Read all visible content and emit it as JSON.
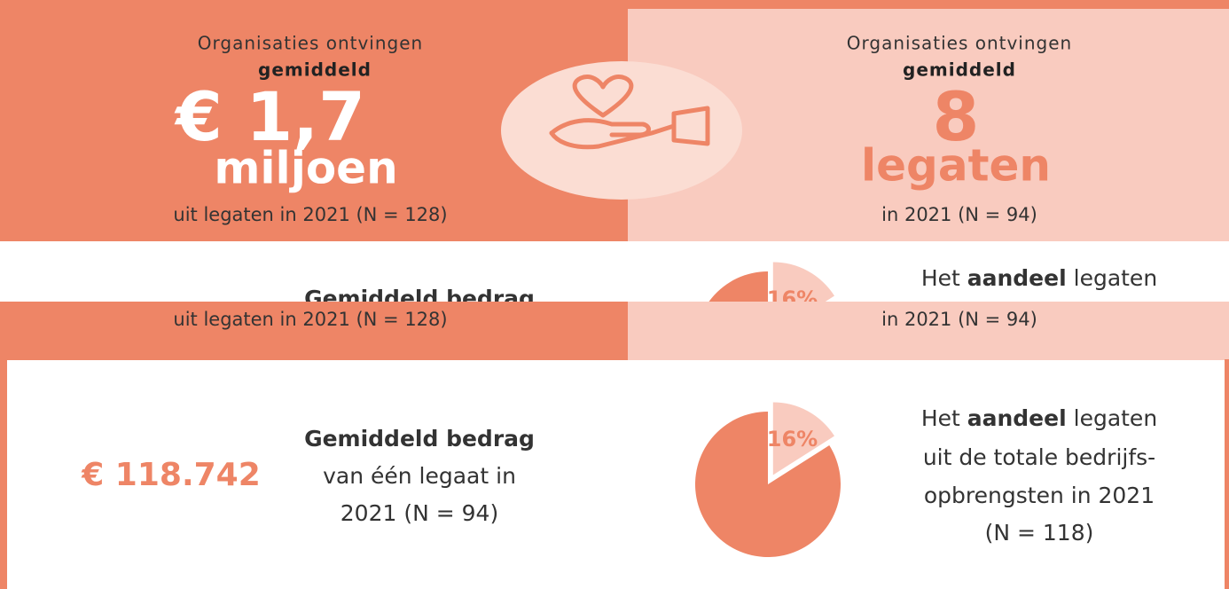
{
  "left": {
    "line1": "Organisaties ontvingen",
    "line2": "gemiddeld",
    "big1": "€ 1,7",
    "big2": "miljoen",
    "foot": "uit legaten in 2021 (N = 128)"
  },
  "right": {
    "line1": "Organisaties ontvingen",
    "line2": "gemiddeld",
    "big1": "8",
    "big2": "legaten",
    "foot": "in 2021 (N = 94)"
  },
  "amount": {
    "value": "€ 118.742",
    "title": "Gemiddeld bedrag",
    "line1": "van één legaat in",
    "line2": "2021 (N = 94)"
  },
  "share": {
    "line1": [
      "Het ",
      "aandeel",
      " legaten"
    ],
    "line2": "uit de totale bedrijfs-",
    "line3": "opbrengsten in 2021",
    "line4": "(N = 118)"
  },
  "chart_data": {
    "type": "pie",
    "values": [
      16,
      84
    ],
    "value_labels": [
      "16%",
      null
    ],
    "colors": [
      "#f9cbbf",
      "#ee8566"
    ]
  }
}
